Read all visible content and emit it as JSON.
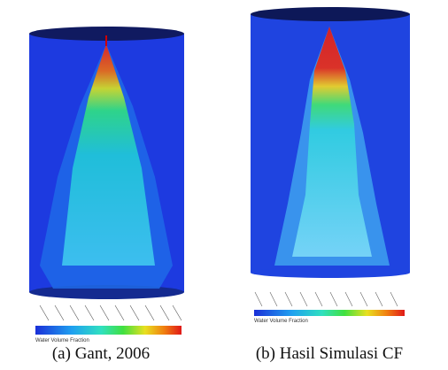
{
  "figure": {
    "panels": [
      {
        "legend_title": "Water Volume Fraction",
        "caption": "(a) Gant, 2006"
      },
      {
        "legend_title": "Water Volume Fraction",
        "caption": "(b) Hasil Simulasi CF"
      }
    ]
  }
}
